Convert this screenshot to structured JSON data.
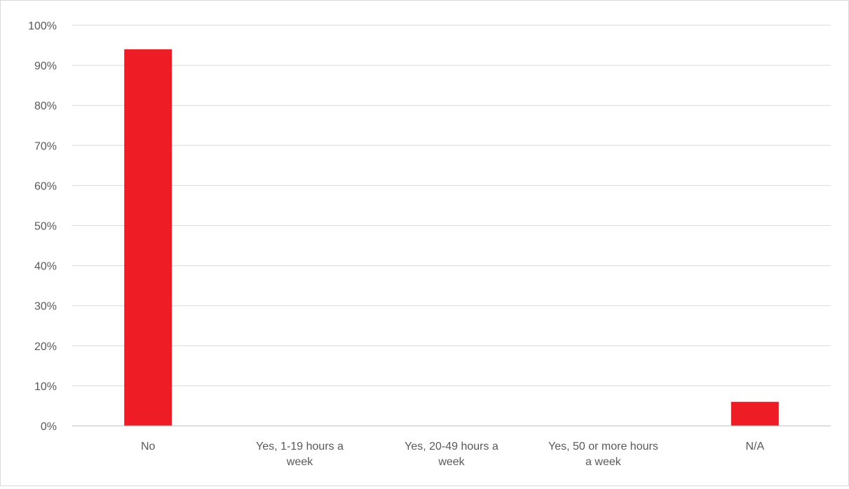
{
  "chart_data": {
    "type": "bar",
    "categories": [
      [
        "No"
      ],
      [
        "Yes, 1-19 hours a",
        "week"
      ],
      [
        "Yes, 20-49 hours a",
        "week"
      ],
      [
        "Yes, 50 or more hours",
        "a week"
      ],
      [
        "N/A"
      ]
    ],
    "values": [
      94,
      0,
      0,
      0,
      6
    ],
    "value_unit": "%",
    "ylim": [
      0,
      100
    ],
    "ytick_step": 10,
    "yticks": [
      "0%",
      "10%",
      "20%",
      "30%",
      "40%",
      "50%",
      "60%",
      "70%",
      "80%",
      "90%",
      "100%"
    ],
    "title": "",
    "xlabel": "",
    "ylabel": "",
    "grid": true,
    "legend": "none",
    "colors": {
      "bar": "#ee1c24",
      "grid": "#d9d9d9",
      "axis": "#bfbfbf",
      "text": "#595959"
    }
  }
}
